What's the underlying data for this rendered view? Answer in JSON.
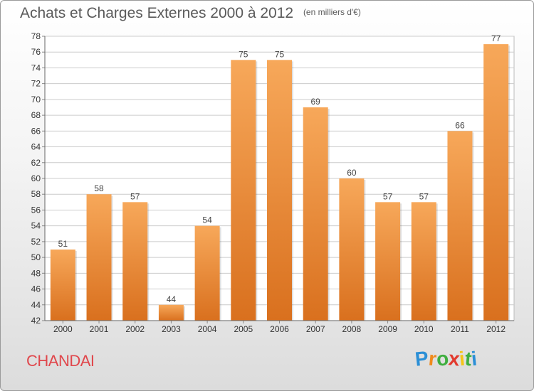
{
  "title": "Achats et Charges Externes 2000 à 2012",
  "unit": "(en milliers d'€)",
  "commune": "CHANDAI",
  "logo": {
    "letters": [
      {
        "char": "P",
        "color": "#2b8fd6"
      },
      {
        "char": "r",
        "color": "#f08a1c"
      },
      {
        "char": "o",
        "color": "#3fae3f"
      },
      {
        "char": "x",
        "color": "#e23a2e"
      },
      {
        "char": "i",
        "color": "#f5c518"
      },
      {
        "char": "t",
        "color": "#3fae3f"
      },
      {
        "char": "i",
        "color": "#2b8fd6"
      }
    ]
  },
  "colors": {
    "bar_top": "#f7a85a",
    "bar_bottom": "#d9701e",
    "grid": "#cccccc",
    "commune": "#e0474c"
  },
  "chart_data": {
    "type": "bar",
    "categories": [
      "2000",
      "2001",
      "2002",
      "2003",
      "2004",
      "2005",
      "2006",
      "2007",
      "2008",
      "2009",
      "2010",
      "2011",
      "2012"
    ],
    "values": [
      51,
      58,
      57,
      44,
      54,
      75,
      75,
      69,
      60,
      57,
      57,
      66,
      77
    ],
    "data_labels": [
      "51",
      "58",
      "57",
      "44",
      "54",
      "75",
      "75",
      "69",
      "60",
      "57",
      "57",
      "66",
      "77"
    ],
    "yticks": [
      "42",
      "44",
      "46",
      "48",
      "50",
      "52",
      "54",
      "56",
      "58",
      "60",
      "62",
      "64",
      "66",
      "68",
      "70",
      "72",
      "74",
      "76",
      "78"
    ],
    "ylim": [
      42,
      78
    ],
    "grid": true,
    "legend": "none"
  }
}
